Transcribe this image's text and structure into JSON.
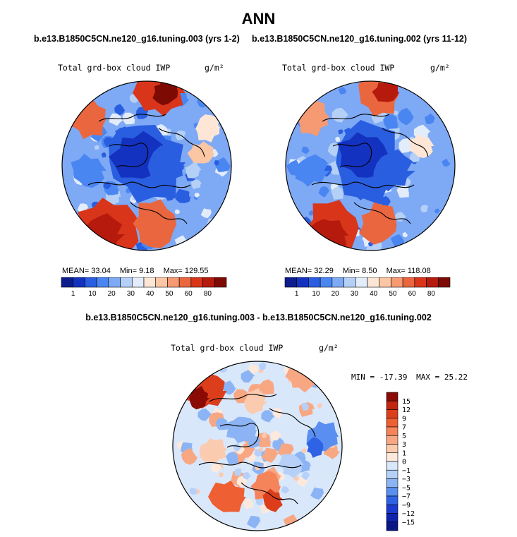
{
  "title": "ANN",
  "panels": {
    "left_case": "b.e13.B1850C5CN.ne120_g16.tuning.003 (yrs 1-2)",
    "right_case": "b.e13.B1850C5CN.ne120_g16.tuning.002 (yrs 11-12)",
    "diff_title": "b.e13.B1850C5CN.ne120_g16.tuning.003 - b.e13.B1850C5CN.ne120_g16.tuning.002"
  },
  "chart_data": [
    {
      "type": "heatmap",
      "projection": "polar stereographic (north)",
      "title": "Total grd-box cloud IWP",
      "units": "g/m²",
      "case": "b.e13.B1850C5CN.ne120_g16.tuning.003 (yrs 1-2)",
      "mean": "33.04",
      "min": "9.18",
      "max": "129.55",
      "mean_label": "MEAN=",
      "min_label": "Min=",
      "max_label": "Max=",
      "levels": [
        "1",
        "10",
        "20",
        "30",
        "40",
        "50",
        "60",
        "80"
      ],
      "colors": [
        "#0d1d8c",
        "#1432c0",
        "#2a5ee0",
        "#4a86f2",
        "#7ea9f5",
        "#b5d0f7",
        "#e2ecfa",
        "#fde6d6",
        "#fbc6a4",
        "#f59a73",
        "#e9663f",
        "#d8351a",
        "#b51a0d",
        "#7e0a04"
      ]
    },
    {
      "type": "heatmap",
      "projection": "polar stereographic (north)",
      "title": "Total grd-box cloud IWP",
      "units": "g/m²",
      "case": "b.e13.B1850C5CN.ne120_g16.tuning.002 (yrs 11-12)",
      "mean": "32.29",
      "min": "8.50",
      "max": "118.08",
      "mean_label": "MEAN=",
      "min_label": "Min=",
      "max_label": "Max=",
      "levels": [
        "1",
        "10",
        "20",
        "30",
        "40",
        "50",
        "60",
        "80"
      ],
      "colors": [
        "#0d1d8c",
        "#1432c0",
        "#2a5ee0",
        "#4a86f2",
        "#7ea9f5",
        "#b5d0f7",
        "#e2ecfa",
        "#fde6d6",
        "#fbc6a4",
        "#f59a73",
        "#e9663f",
        "#d8351a",
        "#b51a0d",
        "#7e0a04"
      ]
    },
    {
      "type": "heatmap",
      "projection": "polar stereographic (north)",
      "title": "Total grd-box cloud IWP",
      "units": "g/m²",
      "case": "b.e13.B1850C5CN.ne120_g16.tuning.003 - b.e13.B1850C5CN.ne120_g16.tuning.002",
      "min": "-17.39",
      "max": "25.22",
      "min_label": "MIN =",
      "max_label": "MAX =",
      "levels": [
        "15",
        "12",
        "9",
        "7",
        "5",
        "3",
        "1",
        "0",
        "−1",
        "−3",
        "−5",
        "−7",
        "−9",
        "−12",
        "−15"
      ],
      "colors": [
        "#8a0a05",
        "#c02612",
        "#dc3e1c",
        "#ee5f34",
        "#f6845a",
        "#f8a783",
        "#fbcbb0",
        "#fde9dc",
        "#d9e7fb",
        "#b6d0f8",
        "#8cb4f4",
        "#5a8ef0",
        "#2f63e6",
        "#1a3ad0",
        "#0f22b0",
        "#0a1585"
      ]
    }
  ]
}
